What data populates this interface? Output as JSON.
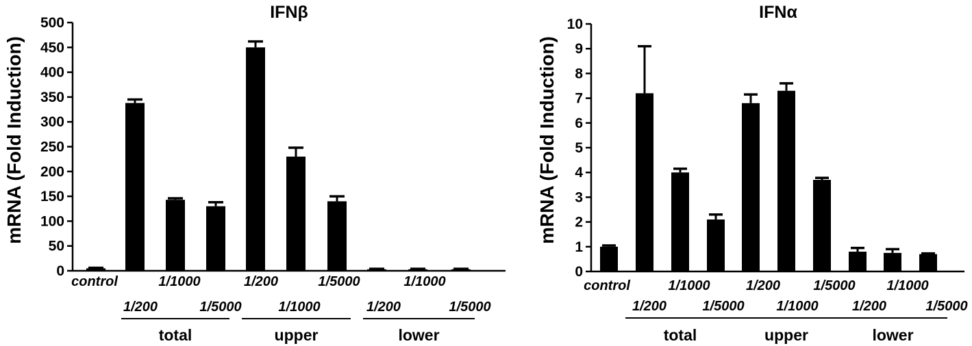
{
  "colors": {
    "bar": "#000000",
    "axis": "#000000",
    "background": "#ffffff"
  },
  "chart_data": [
    {
      "type": "bar",
      "title": "IFNβ",
      "ylabel": "mRNA (Fold Induction)",
      "xlabel": "",
      "ylim": [
        0,
        500
      ],
      "yticks": [
        0,
        50,
        100,
        150,
        200,
        250,
        300,
        350,
        400,
        450,
        500
      ],
      "categories": [
        "control",
        "1/200",
        "1/1000",
        "1/5000",
        "1/200",
        "1/1000",
        "1/5000",
        "1/200",
        "1/1000",
        "1/5000"
      ],
      "values": [
        5,
        338,
        143,
        130,
        450,
        230,
        140,
        3,
        3,
        3
      ],
      "errors": [
        1,
        7,
        3,
        8,
        12,
        18,
        10,
        1,
        1,
        1
      ],
      "groups": [
        {
          "label": "total",
          "start": 1,
          "end": 3
        },
        {
          "label": "upper",
          "start": 4,
          "end": 6
        },
        {
          "label": "lower",
          "start": 7,
          "end": 9
        }
      ],
      "grid": false
    },
    {
      "type": "bar",
      "title": "IFNα",
      "ylabel": "mRNA (Fold Induction)",
      "xlabel": "",
      "ylim": [
        0,
        10
      ],
      "yticks": [
        0,
        1,
        2,
        3,
        4,
        5,
        6,
        7,
        8,
        9,
        10
      ],
      "categories": [
        "control",
        "1/200",
        "1/1000",
        "1/5000",
        "1/200",
        "1/1000",
        "1/5000",
        "1/200",
        "1/1000",
        "1/5000"
      ],
      "values": [
        1.0,
        7.2,
        4.0,
        2.1,
        6.8,
        7.3,
        3.7,
        0.8,
        0.75,
        0.7
      ],
      "errors": [
        0.05,
        1.9,
        0.15,
        0.2,
        0.35,
        0.3,
        0.08,
        0.15,
        0.15,
        0.03
      ],
      "groups": [
        {
          "label": "total",
          "start": 1,
          "end": 3
        },
        {
          "label": "upper",
          "start": 4,
          "end": 6
        },
        {
          "label": "lower",
          "start": 7,
          "end": 9
        }
      ],
      "grid": false
    }
  ]
}
